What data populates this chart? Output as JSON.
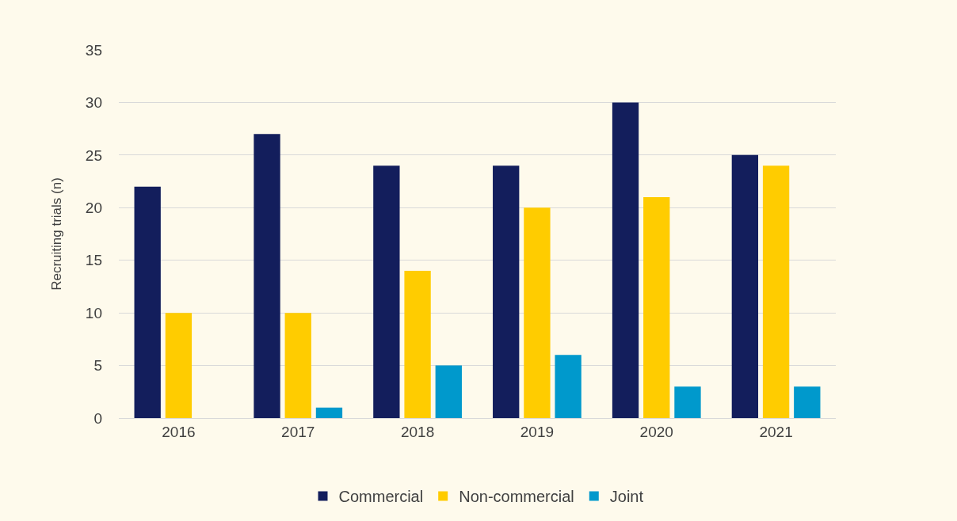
{
  "chart_data": {
    "type": "bar",
    "ylabel": "Recruiting trials (n)",
    "categories": [
      "2016",
      "2017",
      "2018",
      "2019",
      "2020",
      "2021"
    ],
    "series": [
      {
        "name": "Commercial",
        "color": "#131e5c",
        "values": [
          22,
          27,
          24,
          24,
          30,
          25
        ]
      },
      {
        "name": "Non-commercial",
        "color": "#ffcc00",
        "values": [
          10,
          10,
          14,
          20,
          21,
          24
        ]
      },
      {
        "name": "Joint",
        "color": "#0099cc",
        "values": [
          0,
          1,
          5,
          6,
          3,
          3
        ]
      }
    ],
    "ylim": [
      0,
      35
    ],
    "yticks": [
      0,
      5,
      10,
      15,
      20,
      25,
      30,
      35
    ],
    "grid": "y",
    "legend": "bottom"
  }
}
